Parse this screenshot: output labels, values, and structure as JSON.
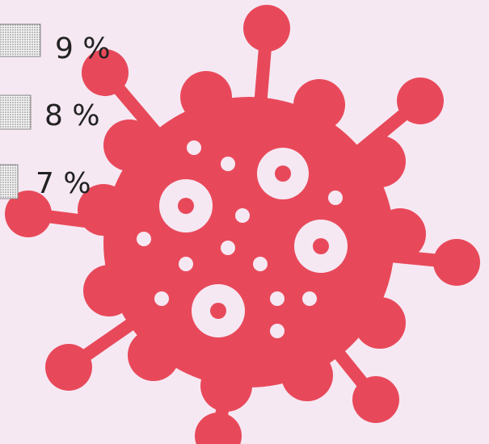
{
  "legend": {
    "items": [
      {
        "label": "9 %"
      },
      {
        "label": "8 %"
      },
      {
        "label": "7 %"
      }
    ]
  }
}
